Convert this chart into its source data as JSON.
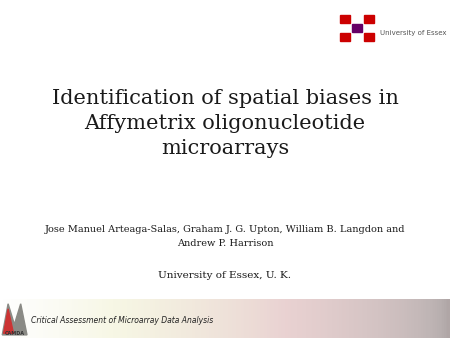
{
  "title_line1": "Identification of spatial biases in",
  "title_line2": "Affymetrix oligonucleotide",
  "title_line3": "microarrays",
  "authors": "Jose Manuel Arteaga-Salas, Graham J. G. Upton, William B. Langdon and\nAndrew P. Harrison",
  "institution": "University of Essex, U. K.",
  "text_color": "#1a1a1a",
  "title_fontsize": 15,
  "author_fontsize": 7,
  "inst_fontsize": 7.5,
  "essex_logo_text": "University of Essex",
  "camda_text": "Critical Assessment of Microarray Data Analysis",
  "slide_bg": "#ffffff",
  "essex_text_color": "#555555",
  "logo_colors": [
    [
      "#cc0000",
      null,
      "#cc0000"
    ],
    [
      null,
      "#660066",
      null
    ],
    [
      "#cc0000",
      null,
      "#cc0000"
    ]
  ]
}
